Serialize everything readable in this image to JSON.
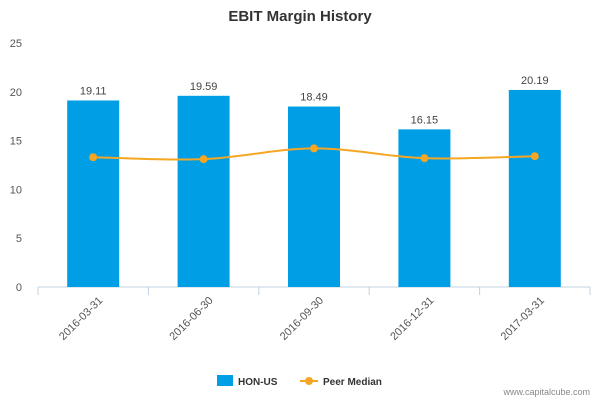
{
  "chart_data": {
    "type": "bar",
    "title": "EBIT Margin History",
    "categories": [
      "2016-03-31",
      "2016-06-30",
      "2016-09-30",
      "2016-12-31",
      "2017-03-31"
    ],
    "series": [
      {
        "name": "HON-US",
        "type": "bar",
        "color": "#009ee5",
        "values": [
          19.11,
          19.59,
          18.49,
          16.15,
          20.19
        ]
      },
      {
        "name": "Peer Median",
        "type": "line",
        "color": "#f5a623",
        "values": [
          13.3,
          13.1,
          14.2,
          13.2,
          13.4
        ]
      }
    ],
    "data_labels": [
      "19.11",
      "19.59",
      "18.49",
      "16.15",
      "20.19"
    ],
    "yticks": [
      "0",
      "5",
      "10",
      "15",
      "20",
      "25"
    ],
    "ylim": [
      0,
      25
    ],
    "grid": false,
    "legend_position": "bottom-center"
  },
  "credit": "www.capitalcube.com"
}
